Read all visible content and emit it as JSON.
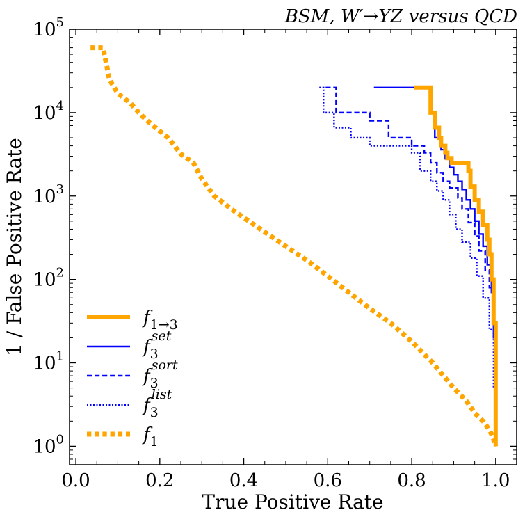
{
  "chart_data": {
    "type": "line",
    "title": "BSM, W′→YZ versus QCD",
    "xlabel": "True Positive Rate",
    "ylabel": "1 / False Positive Rate",
    "xlim": [
      -0.015,
      1.05
    ],
    "ylim": [
      0.6,
      100000
    ],
    "yscale": "log",
    "xticks": [
      "0.0",
      "0.2",
      "0.4",
      "0.6",
      "0.8",
      "1.0"
    ],
    "yticks": [
      {
        "base": "10",
        "exp": "0",
        "value": 1
      },
      {
        "base": "10",
        "exp": "1",
        "value": 10
      },
      {
        "base": "10",
        "exp": "2",
        "value": 100
      },
      {
        "base": "10",
        "exp": "3",
        "value": 1000
      },
      {
        "base": "10",
        "exp": "4",
        "value": 10000
      },
      {
        "base": "10",
        "exp": "5",
        "value": 100000
      }
    ],
    "legend_position": "lower-left",
    "series": [
      {
        "name": "f1→3",
        "legend_base": "f",
        "legend_sub": "1→3",
        "legend_sup": "",
        "color": "#FFA500",
        "style": "solid",
        "width": 6,
        "step": true,
        "x": [
          0.805,
          0.84,
          0.845,
          0.855,
          0.865,
          0.87,
          0.88,
          0.885,
          0.895,
          0.905,
          0.92,
          0.935,
          0.94,
          0.95,
          0.96,
          0.97,
          0.98,
          0.985,
          0.99,
          0.995,
          1.0,
          1.0
        ],
        "y": [
          20000,
          20000,
          10000,
          6600,
          5000,
          4000,
          3300,
          2850,
          2500,
          2500,
          2500,
          2000,
          1300,
          900,
          650,
          450,
          300,
          200,
          100,
          30,
          10,
          1
        ]
      },
      {
        "name": "f3 set",
        "legend_base": "f",
        "legend_sub": "3",
        "legend_sup": "set",
        "color": "#0000FF",
        "style": "solid",
        "width": 2.4,
        "step": true,
        "x": [
          0.71,
          0.835,
          0.845,
          0.855,
          0.87,
          0.88,
          0.89,
          0.9,
          0.91,
          0.92,
          0.93,
          0.94,
          0.95,
          0.96,
          0.97,
          0.98,
          0.99,
          0.995,
          1.0,
          1.0
        ],
        "y": [
          20000,
          20000,
          10000,
          5000,
          3600,
          2800,
          2200,
          1800,
          1500,
          1200,
          900,
          700,
          500,
          350,
          250,
          150,
          70,
          20,
          5,
          1.3
        ]
      },
      {
        "name": "f3 sort",
        "legend_base": "f",
        "legend_sub": "3",
        "legend_sup": "sort",
        "color": "#0000FF",
        "style": "dashed",
        "width": 2.4,
        "step": true,
        "x": [
          0.595,
          0.62,
          0.7,
          0.745,
          0.8,
          0.83,
          0.845,
          0.86,
          0.875,
          0.89,
          0.91,
          0.92,
          0.935,
          0.95,
          0.96,
          0.975,
          0.985,
          0.995,
          1.0,
          1.0
        ],
        "y": [
          20000,
          10000,
          8000,
          5000,
          4000,
          3300,
          2500,
          1900,
          1500,
          1250,
          950,
          700,
          480,
          330,
          220,
          130,
          80,
          30,
          8,
          1.2
        ]
      },
      {
        "name": "f3 list",
        "legend_base": "f",
        "legend_sub": "3",
        "legend_sup": "list",
        "color": "#0000FF",
        "style": "dotted",
        "width": 2.4,
        "step": true,
        "x": [
          0.58,
          0.59,
          0.615,
          0.655,
          0.7,
          0.8,
          0.82,
          0.845,
          0.86,
          0.875,
          0.89,
          0.905,
          0.92,
          0.94,
          0.955,
          0.97,
          0.985,
          0.995,
          1.0
        ],
        "y": [
          20000,
          10000,
          6600,
          5000,
          4000,
          3300,
          2000,
          1500,
          1150,
          900,
          600,
          400,
          280,
          180,
          110,
          60,
          25,
          5,
          1.2
        ]
      },
      {
        "name": "f1",
        "legend_base": "f",
        "legend_sub": "1",
        "legend_sup": "",
        "color": "#FFA500",
        "style": "dotted",
        "width": 7,
        "step": false,
        "x": [
          0.035,
          0.065,
          0.08,
          0.1,
          0.13,
          0.15,
          0.17,
          0.2,
          0.22,
          0.25,
          0.28,
          0.3,
          0.33,
          0.37,
          0.4,
          0.44,
          0.5,
          0.55,
          0.6,
          0.65,
          0.7,
          0.75,
          0.8,
          0.85,
          0.9,
          0.93,
          0.95,
          0.97,
          0.98,
          0.99,
          0.995,
          1.0
        ],
        "y": [
          60000,
          60000,
          25000,
          17000,
          13000,
          10000,
          8000,
          6000,
          5000,
          3200,
          2500,
          1600,
          1000,
          700,
          550,
          400,
          250,
          170,
          110,
          70,
          45,
          30,
          18,
          10,
          5,
          3.5,
          2.5,
          2,
          1.7,
          1.4,
          1.2,
          1
        ]
      }
    ]
  }
}
